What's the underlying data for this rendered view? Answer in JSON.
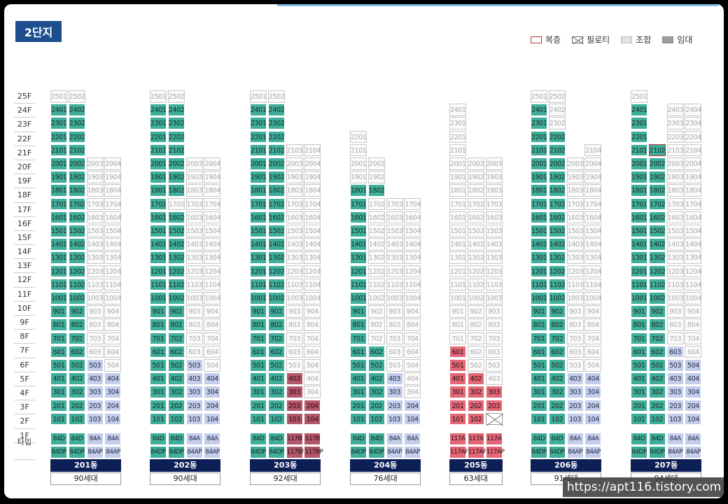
{
  "complex_label": "2단지",
  "legend": [
    {
      "label": "복층",
      "kind": "dup"
    },
    {
      "label": "필로티",
      "kind": "pil"
    },
    {
      "label": "조합",
      "kind": "coop"
    },
    {
      "label": "임대",
      "kind": "rent"
    }
  ],
  "floors": [
    "25F",
    "24F",
    "23F",
    "22F",
    "21F",
    "20F",
    "19F",
    "18F",
    "17F",
    "16F",
    "15F",
    "14F",
    "13F",
    "12F",
    "11F",
    "10F",
    "9F",
    "8F",
    "7F",
    "6F",
    "5F",
    "4F",
    "3F",
    "2F",
    "1F"
  ],
  "type_row_label": "타입",
  "colors": {
    "sale": "#3fae9a",
    "small": "#c4cdea",
    "cooperative": "#fbfbfb",
    "dong_bar": "#0d1f57",
    "badge": "#1d4f8f"
  },
  "buildings": [
    {
      "name": "201동",
      "households": "90세대",
      "types": [
        [
          "84D",
          "84D",
          "84A",
          "84A"
        ],
        [
          "84DP",
          "84DP",
          "84AP",
          "84AP"
        ]
      ],
      "top_floors": [
        25,
        25,
        20,
        20
      ],
      "colored": {
        "g": [
          "1-24:1",
          "1-24:2"
        ],
        "b": [
          "503",
          "403",
          "303",
          "203",
          "103",
          "404",
          "304",
          "204",
          "104"
        ]
      }
    },
    {
      "name": "202동",
      "households": "90세대",
      "types": [
        [
          "84D",
          "84D",
          "84A",
          "84A"
        ],
        [
          "84DP",
          "84DP",
          "84AP",
          "84AP"
        ]
      ],
      "top_floors": [
        25,
        25,
        20,
        20
      ],
      "colored": {
        "g": [
          "1-24:1",
          "1-24:2"
        ],
        "b": [
          "503",
          "403",
          "303",
          "203",
          "103",
          "404",
          "304",
          "204",
          "104"
        ],
        "e": [
          "1702"
        ]
      }
    },
    {
      "name": "203동",
      "households": "92세대",
      "types": [
        [
          "84D",
          "84D",
          "117B",
          "117B"
        ],
        [
          "84DP",
          "84DP",
          "117BP",
          "117BP"
        ]
      ],
      "top_floors": [
        25,
        25,
        21,
        21
      ],
      "colored": {
        "g": [
          "1-24:1",
          "1-24:2"
        ],
        "r": [
          "403",
          "303",
          "203",
          "103",
          "204",
          "104"
        ]
      }
    },
    {
      "name": "204동",
      "households": "76세대",
      "types": [
        [
          "84D",
          "84D",
          "84A",
          "84A"
        ],
        [
          "84DP",
          "84DP",
          "84AP",
          "84AP"
        ]
      ],
      "top_floors": [
        22,
        20,
        17,
        17
      ],
      "colored": {
        "g": [
          "1-18:1",
          "1-18:2"
        ],
        "b": [
          "403",
          "303",
          "203",
          "103",
          "204",
          "104"
        ],
        "e": [
          "1702",
          "1602",
          "1502",
          "1402",
          "1302",
          "1202",
          "1102",
          "1002",
          "902",
          "802",
          "702"
        ]
      }
    },
    {
      "name": "205동",
      "households": "63세대",
      "types": [
        [
          "117A",
          "117A",
          "117A"
        ],
        [
          "117AP",
          "117AP",
          "117AP"
        ]
      ],
      "top_floors": [
        24,
        20,
        20
      ],
      "colored": {
        "p": [
          "601",
          "501",
          "401",
          "402",
          "301",
          "302",
          "303",
          "201",
          "202",
          "203",
          "101",
          "102"
        ],
        "x": [
          "103"
        ]
      }
    },
    {
      "name": "206동",
      "households": "91세대",
      "types": [
        [
          "84D",
          "84D",
          "84A",
          "84A"
        ],
        [
          "84DP",
          "84DP",
          "84AP",
          "84AP"
        ]
      ],
      "top_floors": [
        25,
        25,
        20,
        21
      ],
      "colored": {
        "g": [
          "1-24:1",
          "1-22:2",
          "1-20:2"
        ],
        "b": [
          "403",
          "303",
          "203",
          "103",
          "404",
          "304",
          "204",
          "104"
        ]
      }
    },
    {
      "name": "207동",
      "households": "94세대",
      "types": [
        [
          "84D",
          "84D",
          "84A",
          "84A"
        ],
        [
          "84DP",
          "84DP",
          "84AP",
          "84AP"
        ]
      ],
      "top_floors": [
        25,
        21,
        24,
        24
      ],
      "colored": {
        "g": [
          "1-24:1",
          "1-20:2"
        ],
        "gd": [
          "2102"
        ],
        "b": [
          "603",
          "503",
          "403",
          "303",
          "203",
          "103",
          "504",
          "404",
          "304",
          "204",
          "104"
        ]
      }
    }
  ],
  "watermark": "https://apt116.tistory.com"
}
